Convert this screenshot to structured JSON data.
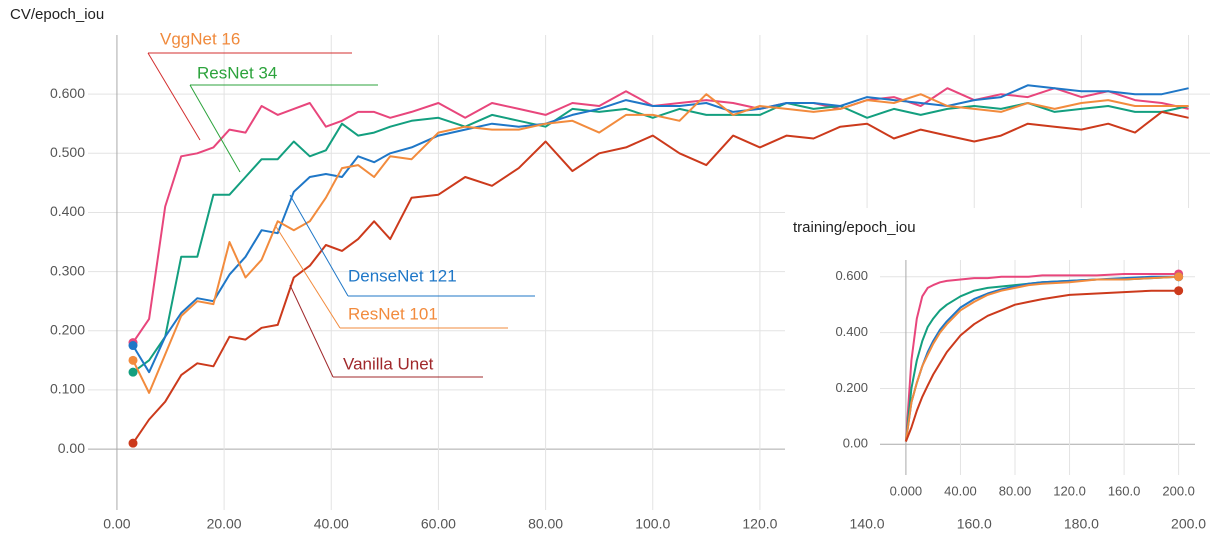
{
  "chart_data": [
    {
      "type": "line",
      "title": "CV/epoch_iou",
      "x": [
        3,
        6,
        9,
        12,
        15,
        18,
        21,
        24,
        27,
        30,
        33,
        36,
        39,
        42,
        45,
        48,
        51,
        55,
        60,
        65,
        70,
        75,
        80,
        85,
        90,
        95,
        100,
        105,
        110,
        115,
        120,
        125,
        130,
        135,
        140,
        145,
        150,
        155,
        160,
        165,
        170,
        175,
        180,
        185,
        190,
        195,
        200
      ],
      "series": [
        {
          "name": "VggNet 16",
          "color": "#e8467c",
          "values": [
            0.18,
            0.22,
            0.41,
            0.495,
            0.5,
            0.51,
            0.54,
            0.535,
            0.58,
            0.565,
            0.575,
            0.585,
            0.545,
            0.555,
            0.57,
            0.57,
            0.56,
            0.57,
            0.585,
            0.56,
            0.585,
            0.575,
            0.565,
            0.585,
            0.58,
            0.605,
            0.58,
            0.585,
            0.59,
            0.585,
            0.575,
            0.585,
            0.585,
            0.575,
            0.59,
            0.595,
            0.58,
            0.61,
            0.59,
            0.6,
            0.595,
            0.61,
            0.595,
            0.605,
            0.59,
            0.585,
            0.575
          ]
        },
        {
          "name": "ResNet 34",
          "color": "#139f7f",
          "values": [
            0.13,
            0.15,
            0.19,
            0.325,
            0.325,
            0.43,
            0.43,
            0.46,
            0.49,
            0.49,
            0.52,
            0.495,
            0.505,
            0.55,
            0.53,
            0.535,
            0.545,
            0.555,
            0.56,
            0.545,
            0.565,
            0.555,
            0.545,
            0.575,
            0.57,
            0.575,
            0.56,
            0.575,
            0.565,
            0.565,
            0.565,
            0.585,
            0.575,
            0.58,
            0.56,
            0.575,
            0.565,
            0.575,
            0.58,
            0.575,
            0.585,
            0.57,
            0.575,
            0.58,
            0.57,
            0.57,
            0.58
          ]
        },
        {
          "name": "DenseNet 121",
          "color": "#1f77c7",
          "values": [
            0.175,
            0.13,
            0.19,
            0.23,
            0.255,
            0.25,
            0.295,
            0.325,
            0.37,
            0.365,
            0.435,
            0.46,
            0.465,
            0.46,
            0.495,
            0.485,
            0.5,
            0.51,
            0.53,
            0.54,
            0.55,
            0.545,
            0.55,
            0.565,
            0.575,
            0.59,
            0.58,
            0.58,
            0.585,
            0.57,
            0.575,
            0.585,
            0.585,
            0.58,
            0.595,
            0.59,
            0.585,
            0.58,
            0.59,
            0.595,
            0.615,
            0.61,
            0.605,
            0.605,
            0.6,
            0.6,
            0.61
          ]
        },
        {
          "name": "ResNet 101",
          "color": "#f28b3d",
          "values": [
            0.15,
            0.095,
            0.16,
            0.225,
            0.25,
            0.245,
            0.35,
            0.29,
            0.32,
            0.385,
            0.37,
            0.385,
            0.425,
            0.475,
            0.48,
            0.46,
            0.495,
            0.49,
            0.535,
            0.545,
            0.54,
            0.54,
            0.55,
            0.555,
            0.535,
            0.565,
            0.565,
            0.555,
            0.6,
            0.565,
            0.58,
            0.575,
            0.57,
            0.575,
            0.59,
            0.585,
            0.6,
            0.58,
            0.575,
            0.57,
            0.585,
            0.575,
            0.585,
            0.59,
            0.58,
            0.58,
            0.58
          ]
        },
        {
          "name": "Vanilla Unet",
          "color": "#cc3a1c",
          "values": [
            0.01,
            0.05,
            0.08,
            0.125,
            0.145,
            0.14,
            0.19,
            0.185,
            0.205,
            0.21,
            0.29,
            0.31,
            0.345,
            0.335,
            0.355,
            0.385,
            0.355,
            0.425,
            0.43,
            0.46,
            0.445,
            0.475,
            0.52,
            0.47,
            0.5,
            0.51,
            0.53,
            0.5,
            0.48,
            0.53,
            0.51,
            0.53,
            0.525,
            0.545,
            0.55,
            0.525,
            0.54,
            0.53,
            0.52,
            0.53,
            0.55,
            0.545,
            0.54,
            0.55,
            0.535,
            0.57,
            0.56
          ]
        }
      ],
      "xlim": [
        -5.4,
        204
      ],
      "ylim": [
        -0.103,
        0.7
      ],
      "xticks": [
        {
          "value": 0,
          "label": "0.00"
        },
        {
          "value": 20,
          "label": "20.00"
        },
        {
          "value": 40,
          "label": "40.00"
        },
        {
          "value": 60,
          "label": "60.00"
        },
        {
          "value": 80,
          "label": "80.00"
        },
        {
          "value": 100,
          "label": "100.0"
        },
        {
          "value": 120,
          "label": "120.0"
        },
        {
          "value": 140,
          "label": "140.0"
        },
        {
          "value": 160,
          "label": "160.0"
        },
        {
          "value": 180,
          "label": "180.0"
        },
        {
          "value": 200,
          "label": "200.0"
        }
      ],
      "yticks": [
        {
          "value": 0,
          "label": "0.00"
        },
        {
          "value": 0.1,
          "label": "0.100"
        },
        {
          "value": 0.2,
          "label": "0.200"
        },
        {
          "value": 0.3,
          "label": "0.300"
        },
        {
          "value": 0.4,
          "label": "0.400"
        },
        {
          "value": 0.5,
          "label": "0.500"
        },
        {
          "value": 0.6,
          "label": "0.600"
        }
      ],
      "grid": true,
      "annotations": [
        {
          "text": "VggNet 16",
          "color": "#f08a3c",
          "line_color": "#d32f2f"
        },
        {
          "text": "ResNet 34",
          "color": "#2ca33c",
          "line_color": "#2ca33c"
        },
        {
          "text": "DenseNet 121",
          "color": "#1f77c7",
          "line_color": "#1f77c7"
        },
        {
          "text": "ResNet 101",
          "color": "#f28b3d",
          "line_color": "#f28b3d"
        },
        {
          "text": "Vanilla Unet",
          "color": "#a0282b",
          "line_color": "#a0282b"
        }
      ]
    },
    {
      "type": "line",
      "title": "training/epoch_iou",
      "x": [
        0,
        4,
        8,
        12,
        16,
        20,
        25,
        30,
        40,
        50,
        60,
        70,
        80,
        90,
        100,
        120,
        140,
        160,
        180,
        200
      ],
      "series": [
        {
          "name": "VggNet 16",
          "color": "#e8467c",
          "values": [
            0.01,
            0.3,
            0.45,
            0.53,
            0.56,
            0.57,
            0.58,
            0.585,
            0.59,
            0.595,
            0.595,
            0.6,
            0.6,
            0.6,
            0.605,
            0.605,
            0.605,
            0.61,
            0.61,
            0.61
          ]
        },
        {
          "name": "ResNet 34",
          "color": "#139f7f",
          "values": [
            0.01,
            0.2,
            0.3,
            0.37,
            0.42,
            0.45,
            0.48,
            0.5,
            0.53,
            0.55,
            0.56,
            0.565,
            0.57,
            0.575,
            0.58,
            0.585,
            0.59,
            0.59,
            0.595,
            0.6
          ]
        },
        {
          "name": "DenseNet 121",
          "color": "#1f77c7",
          "values": [
            0.01,
            0.15,
            0.22,
            0.28,
            0.33,
            0.37,
            0.41,
            0.44,
            0.49,
            0.52,
            0.54,
            0.555,
            0.565,
            0.575,
            0.58,
            0.585,
            0.59,
            0.595,
            0.6,
            0.6
          ]
        },
        {
          "name": "ResNet 101",
          "color": "#f28b3d",
          "values": [
            0.01,
            0.15,
            0.22,
            0.28,
            0.32,
            0.36,
            0.4,
            0.43,
            0.48,
            0.51,
            0.535,
            0.55,
            0.56,
            0.57,
            0.575,
            0.58,
            0.59,
            0.59,
            0.595,
            0.6
          ]
        },
        {
          "name": "Vanilla Unet",
          "color": "#cc3a1c",
          "values": [
            0.01,
            0.06,
            0.12,
            0.17,
            0.21,
            0.25,
            0.29,
            0.33,
            0.39,
            0.43,
            0.46,
            0.48,
            0.5,
            0.51,
            0.52,
            0.535,
            0.54,
            0.545,
            0.55,
            0.55
          ]
        }
      ],
      "xlim": [
        -19,
        212
      ],
      "ylim": [
        -0.11,
        0.66
      ],
      "xticks": [
        {
          "value": 0,
          "label": "0.000"
        },
        {
          "value": 40,
          "label": "40.00"
        },
        {
          "value": 80,
          "label": "80.00"
        },
        {
          "value": 120,
          "label": "120.0"
        },
        {
          "value": 160,
          "label": "160.0"
        },
        {
          "value": 200,
          "label": "200.0"
        }
      ],
      "yticks": [
        {
          "value": 0,
          "label": "0.00"
        },
        {
          "value": 0.2,
          "label": "0.200"
        },
        {
          "value": 0.4,
          "label": "0.400"
        },
        {
          "value": 0.6,
          "label": "0.600"
        }
      ],
      "grid": true
    }
  ]
}
